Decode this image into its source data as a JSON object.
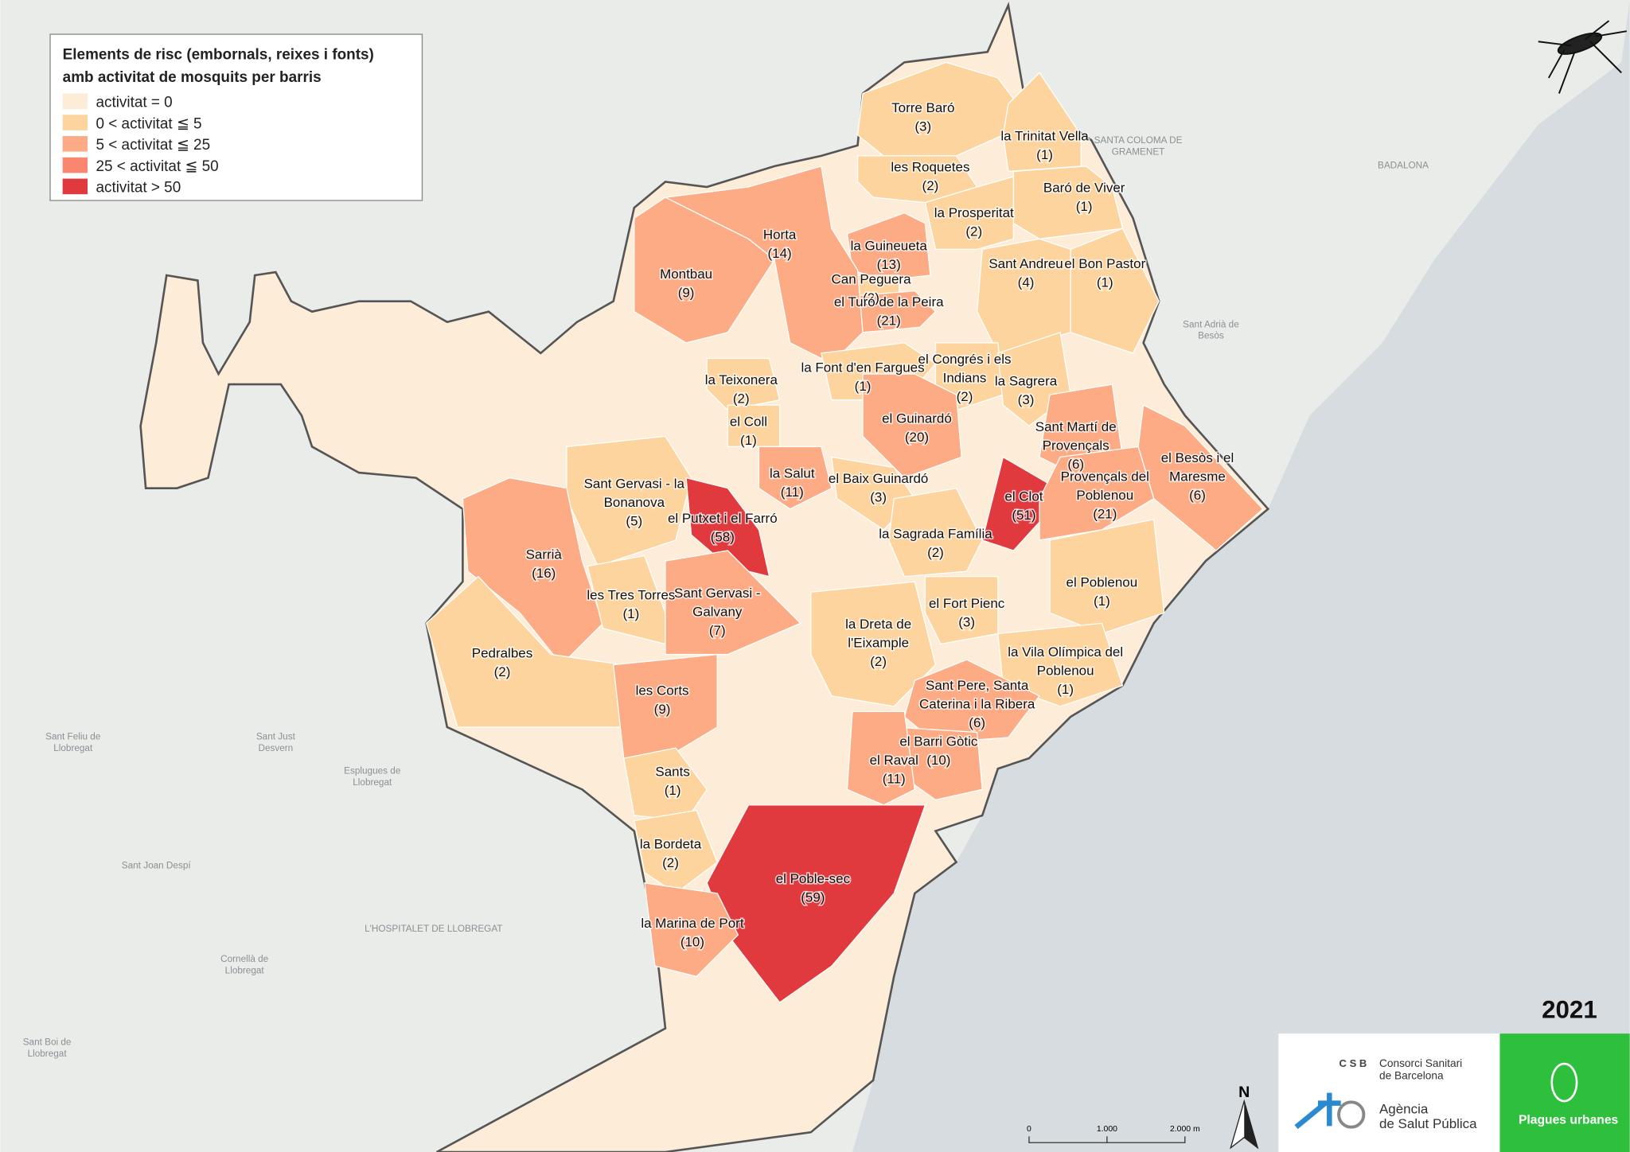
{
  "legend": {
    "title": [
      "Elements de risc (embornals, reixes i fonts)",
      "amb activitat de mosquits per barris"
    ],
    "classes": [
      {
        "label": "activitat = 0",
        "color": "#fdecd8",
        "max": 0
      },
      {
        "label": "0 < activitat ≦ 5",
        "color": "#fdd49e",
        "max": 5
      },
      {
        "label": "5 < activitat ≦ 25",
        "color": "#fcab84",
        "max": 25
      },
      {
        "label": "25 < activitat ≦ 50",
        "color": "#fa8670",
        "max": 50
      },
      {
        "label": "activitat > 50",
        "color": "#e0393e"
      }
    ]
  },
  "neighborhoods": [
    {
      "lines": [
        "Torre Baró"
      ],
      "value": 3,
      "value_label": "(3)"
    },
    {
      "lines": [
        "la Trinitat Vella"
      ],
      "value": 1,
      "value_label": "(1)"
    },
    {
      "lines": [
        "les Roquetes"
      ],
      "value": 2,
      "value_label": "(2)"
    },
    {
      "lines": [
        "Baró de Viver"
      ],
      "value": 1,
      "value_label": "(1)"
    },
    {
      "lines": [
        "la Prosperitat"
      ],
      "value": 2,
      "value_label": "(2)"
    },
    {
      "lines": [
        "la Guineueta"
      ],
      "value": 13,
      "value_label": "(13)"
    },
    {
      "lines": [
        "Sant Andreu"
      ],
      "value": 4,
      "value_label": "(4)"
    },
    {
      "lines": [
        "el Bon Pastor"
      ],
      "value": 1,
      "value_label": "(1)"
    },
    {
      "lines": [
        "Can Peguera"
      ],
      "value": 2,
      "value_label": "(2)"
    },
    {
      "lines": [
        "el Turó de la Peira"
      ],
      "value": 21,
      "value_label": "(21)"
    },
    {
      "lines": [
        "Horta"
      ],
      "value": 14,
      "value_label": "(14)"
    },
    {
      "lines": [
        "Montbau"
      ],
      "value": 9,
      "value_label": "(9)"
    },
    {
      "lines": [
        "la Teixonera"
      ],
      "value": 2,
      "value_label": "(2)"
    },
    {
      "lines": [
        "la Font d'en Fargues"
      ],
      "value": 1,
      "value_label": "(1)"
    },
    {
      "lines": [
        "el Congrés i els",
        "Indians"
      ],
      "value": 2,
      "value_label": "(2)"
    },
    {
      "lines": [
        "la Sagrera"
      ],
      "value": 3,
      "value_label": "(3)"
    },
    {
      "lines": [
        "el Coll"
      ],
      "value": 1,
      "value_label": "(1)"
    },
    {
      "lines": [
        "el Guinardó"
      ],
      "value": 20,
      "value_label": "(20)"
    },
    {
      "lines": [
        "Sant Martí de",
        "Provençals"
      ],
      "value": 6,
      "value_label": "(6)"
    },
    {
      "lines": [
        "el Besòs i el",
        "Maresme"
      ],
      "value": 6,
      "value_label": "(6)"
    },
    {
      "lines": [
        "la Salut"
      ],
      "value": 11,
      "value_label": "(11)"
    },
    {
      "lines": [
        "el Baix Guinardó"
      ],
      "value": 3,
      "value_label": "(3)"
    },
    {
      "lines": [
        "el Clot"
      ],
      "value": 51,
      "value_label": "(51)"
    },
    {
      "lines": [
        "Provençals del",
        "Poblenou"
      ],
      "value": 21,
      "value_label": "(21)"
    },
    {
      "lines": [
        "Sant Gervasi - la",
        "Bonanova"
      ],
      "value": 5,
      "value_label": "(5)"
    },
    {
      "lines": [
        "el Putxet i el Farró"
      ],
      "value": 58,
      "value_label": "(58)"
    },
    {
      "lines": [
        "la Sagrada Família"
      ],
      "value": 2,
      "value_label": "(2)"
    },
    {
      "lines": [
        "Sarrià"
      ],
      "value": 16,
      "value_label": "(16)"
    },
    {
      "lines": [
        "les Tres Torres"
      ],
      "value": 1,
      "value_label": "(1)"
    },
    {
      "lines": [
        "Sant Gervasi -",
        "Galvany"
      ],
      "value": 7,
      "value_label": "(7)"
    },
    {
      "lines": [
        "el Poblenou"
      ],
      "value": 1,
      "value_label": "(1)"
    },
    {
      "lines": [
        "la Dreta de",
        "l'Eixample"
      ],
      "value": 2,
      "value_label": "(2)"
    },
    {
      "lines": [
        "el Fort Pienc"
      ],
      "value": 3,
      "value_label": "(3)"
    },
    {
      "lines": [
        "Pedralbes"
      ],
      "value": 2,
      "value_label": "(2)"
    },
    {
      "lines": [
        "la Vila Olímpica del",
        "Poblenou"
      ],
      "value": 1,
      "value_label": "(1)"
    },
    {
      "lines": [
        "les Corts"
      ],
      "value": 9,
      "value_label": "(9)"
    },
    {
      "lines": [
        "Sant Pere, Santa",
        "Caterina i la Ribera"
      ],
      "value": 6,
      "value_label": "(6)"
    },
    {
      "lines": [
        "el Barri Gòtic"
      ],
      "value": 10,
      "value_label": "(10)"
    },
    {
      "lines": [
        "el Raval"
      ],
      "value": 11,
      "value_label": "(11)"
    },
    {
      "lines": [
        "Sants"
      ],
      "value": 1,
      "value_label": "(1)"
    },
    {
      "lines": [
        "la Bordeta"
      ],
      "value": 2,
      "value_label": "(2)"
    },
    {
      "lines": [
        "el Poble-sec"
      ],
      "value": 59,
      "value_label": "(59)"
    },
    {
      "lines": [
        "la Marina de Port"
      ],
      "value": 10,
      "value_label": "(10)"
    }
  ],
  "places": [
    [
      "SANTA COLOMA DE",
      "GRAMENET"
    ],
    [
      "BADALONA"
    ],
    [
      "L'HOSPITALET DE LLOBREGAT"
    ],
    [
      "Sant Feliu de",
      "Llobregat"
    ],
    [
      "Sant Just",
      "Desvern"
    ],
    [
      "Esplugues de",
      "Llobregat"
    ],
    [
      "Sant Joan Despí"
    ],
    [
      "Cornellà de",
      "Llobregat"
    ],
    [
      "Sant Boi de",
      "Llobregat"
    ],
    [
      "Sant Adrià de",
      "Besòs"
    ]
  ],
  "year": "2021",
  "logos": {
    "csb": "C S B",
    "csb_name": [
      "Consorci Sanitari",
      "de Barcelona"
    ],
    "aspb_name": [
      "Agència",
      "de Salut Pública"
    ],
    "plagues": "Plagues urbanes"
  },
  "scale_bar": [
    "0",
    "1.000",
    "2.000 m"
  ],
  "north": "N"
}
